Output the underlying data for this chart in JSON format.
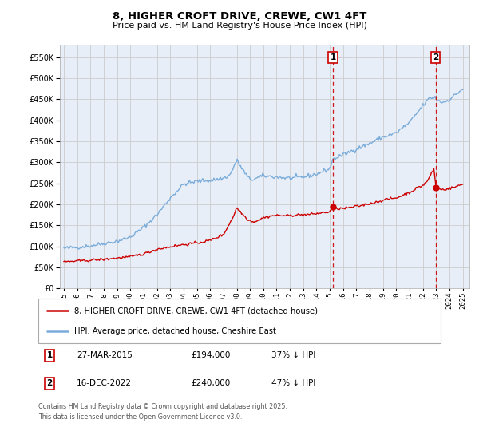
{
  "title": "8, HIGHER CROFT DRIVE, CREWE, CW1 4FT",
  "subtitle": "Price paid vs. HM Land Registry's House Price Index (HPI)",
  "legend_entry1": "8, HIGHER CROFT DRIVE, CREWE, CW1 4FT (detached house)",
  "legend_entry2": "HPI: Average price, detached house, Cheshire East",
  "footnote1": "Contains HM Land Registry data © Crown copyright and database right 2025.",
  "footnote2": "This data is licensed under the Open Government Licence v3.0.",
  "marker1_date": 2015.23,
  "marker1_label": "1",
  "marker1_text": "27-MAR-2015",
  "marker1_price": "£194,000",
  "marker1_pct": "37% ↓ HPI",
  "marker1_value": 194000,
  "marker2_date": 2022.96,
  "marker2_label": "2",
  "marker2_text": "16-DEC-2022",
  "marker2_price": "£240,000",
  "marker2_pct": "47% ↓ HPI",
  "marker2_value": 240000,
  "red_color": "#cc0000",
  "blue_color": "#7aacda",
  "grid_color": "#cccccc",
  "background_color": "#e8eef8",
  "ylim": [
    0,
    580000
  ],
  "xlim_start": 1994.7,
  "xlim_end": 2025.5
}
